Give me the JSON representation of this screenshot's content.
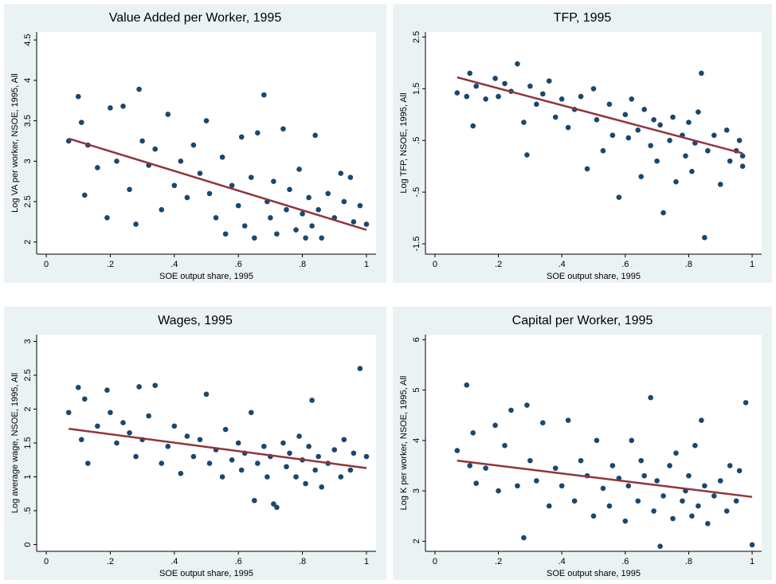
{
  "chart_data": [
    {
      "type": "scatter",
      "title": "Value Added per Worker, 1995",
      "x_label": "SOE output share, 1995",
      "y_label": "Log VA per worker, NSOE, 1995, All",
      "xlim": [
        -0.03,
        1.03
      ],
      "xticks": [
        0,
        {
          "value": 0.2,
          "label": ".2"
        },
        {
          "value": 0.4,
          "label": ".4"
        },
        {
          "value": 0.6,
          "label": ".6"
        },
        {
          "value": 0.8,
          "label": ".8"
        },
        1
      ],
      "ylim": [
        1.85,
        4.6
      ],
      "yticks": [
        2,
        2.5,
        3,
        3.5,
        4,
        4.5
      ],
      "series": [
        {
          "type": "scatter",
          "color": "#1a476f",
          "x": [
            0.07,
            0.1,
            0.11,
            0.12,
            0.13,
            0.16,
            0.19,
            0.2,
            0.22,
            0.24,
            0.26,
            0.28,
            0.29,
            0.3,
            0.32,
            0.34,
            0.36,
            0.38,
            0.4,
            0.42,
            0.44,
            0.46,
            0.48,
            0.5,
            0.51,
            0.53,
            0.55,
            0.56,
            0.58,
            0.6,
            0.61,
            0.62,
            0.64,
            0.65,
            0.66,
            0.68,
            0.69,
            0.7,
            0.71,
            0.72,
            0.74,
            0.75,
            0.76,
            0.78,
            0.79,
            0.8,
            0.81,
            0.82,
            0.83,
            0.84,
            0.85,
            0.86,
            0.88,
            0.9,
            0.92,
            0.93,
            0.95,
            0.96,
            0.98,
            1.0
          ],
          "values": [
            3.25,
            3.8,
            3.48,
            2.58,
            3.2,
            2.92,
            2.3,
            3.66,
            3.0,
            3.68,
            2.65,
            2.22,
            3.89,
            3.25,
            2.95,
            3.15,
            2.4,
            3.58,
            2.7,
            3.0,
            2.55,
            3.2,
            2.85,
            3.5,
            2.6,
            2.3,
            3.05,
            2.1,
            2.7,
            2.45,
            3.3,
            2.2,
            2.8,
            2.05,
            3.35,
            3.82,
            2.5,
            2.3,
            2.75,
            2.1,
            3.4,
            2.4,
            2.65,
            2.15,
            2.9,
            2.35,
            2.05,
            2.55,
            2.2,
            3.32,
            2.4,
            2.05,
            2.6,
            2.3,
            2.85,
            2.5,
            2.8,
            2.25,
            2.45,
            2.22
          ]
        },
        {
          "type": "line",
          "color": "#90353b",
          "x": [
            0.07,
            1.0
          ],
          "values": [
            3.28,
            2.15
          ]
        }
      ]
    },
    {
      "type": "scatter",
      "title": "TFP, 1995",
      "x_label": "SOE output share, 1995",
      "y_label": "Log TFP, NSOE, 1995, All",
      "xlim": [
        -0.03,
        1.03
      ],
      "xticks": [
        0,
        {
          "value": 0.2,
          "label": ".2"
        },
        {
          "value": 0.4,
          "label": ".4"
        },
        {
          "value": 0.6,
          "label": ".6"
        },
        {
          "value": 0.8,
          "label": ".8"
        },
        1
      ],
      "ylim": [
        -1.7,
        2.6
      ],
      "yticks": [
        -1.5,
        {
          "value": -0.5,
          "label": "-.5"
        },
        {
          "value": 0.5,
          "label": ".5"
        },
        1.5,
        2.5
      ],
      "series": [
        {
          "type": "scatter",
          "color": "#1a476f",
          "x": [
            0.07,
            0.1,
            0.11,
            0.12,
            0.13,
            0.16,
            0.19,
            0.2,
            0.22,
            0.24,
            0.26,
            0.28,
            0.29,
            0.3,
            0.32,
            0.34,
            0.36,
            0.38,
            0.4,
            0.42,
            0.44,
            0.46,
            0.48,
            0.5,
            0.51,
            0.53,
            0.55,
            0.56,
            0.58,
            0.6,
            0.61,
            0.62,
            0.64,
            0.65,
            0.66,
            0.68,
            0.69,
            0.7,
            0.71,
            0.72,
            0.74,
            0.75,
            0.76,
            0.78,
            0.79,
            0.8,
            0.81,
            0.82,
            0.83,
            0.84,
            0.85,
            0.86,
            0.88,
            0.9,
            0.92,
            0.93,
            0.95,
            0.96,
            0.97,
            0.97
          ],
          "values": [
            1.42,
            1.35,
            1.8,
            0.78,
            1.55,
            1.3,
            1.7,
            1.35,
            1.6,
            1.45,
            1.98,
            0.85,
            0.22,
            1.55,
            1.2,
            1.4,
            1.65,
            0.95,
            1.3,
            0.75,
            1.1,
            1.35,
            -0.05,
            1.5,
            0.9,
            0.3,
            1.2,
            0.6,
            -0.6,
            1.0,
            0.55,
            1.3,
            0.7,
            -0.2,
            1.1,
            0.4,
            0.9,
            0.1,
            0.8,
            -0.9,
            0.5,
            0.95,
            -0.3,
            0.6,
            0.2,
            0.85,
            -0.1,
            0.45,
            1.05,
            1.8,
            -1.38,
            0.3,
            0.6,
            -0.35,
            0.7,
            0.1,
            0.3,
            0.5,
            0.0,
            0.2
          ]
        },
        {
          "type": "line",
          "color": "#90353b",
          "x": [
            0.07,
            0.97
          ],
          "values": [
            1.72,
            0.25
          ]
        }
      ]
    },
    {
      "type": "scatter",
      "title": "Wages, 1995",
      "x_label": "SOE output share, 1995",
      "y_label": "Log average wage, NSOE, 1995, All",
      "xlim": [
        -0.03,
        1.03
      ],
      "xticks": [
        0,
        {
          "value": 0.2,
          "label": ".2"
        },
        {
          "value": 0.4,
          "label": ".4"
        },
        {
          "value": 0.6,
          "label": ".6"
        },
        {
          "value": 0.8,
          "label": ".8"
        },
        1
      ],
      "ylim": [
        -0.1,
        3.1
      ],
      "yticks": [
        0,
        {
          "value": 0.5,
          "label": ".5"
        },
        1,
        1.5,
        2,
        2.5,
        3
      ],
      "series": [
        {
          "type": "scatter",
          "color": "#1a476f",
          "x": [
            0.07,
            0.1,
            0.11,
            0.12,
            0.13,
            0.16,
            0.19,
            0.2,
            0.22,
            0.24,
            0.26,
            0.28,
            0.29,
            0.3,
            0.32,
            0.34,
            0.36,
            0.38,
            0.4,
            0.42,
            0.44,
            0.46,
            0.48,
            0.5,
            0.51,
            0.53,
            0.55,
            0.56,
            0.58,
            0.6,
            0.61,
            0.62,
            0.64,
            0.65,
            0.66,
            0.68,
            0.69,
            0.7,
            0.71,
            0.72,
            0.74,
            0.75,
            0.76,
            0.78,
            0.79,
            0.8,
            0.81,
            0.82,
            0.83,
            0.84,
            0.85,
            0.86,
            0.88,
            0.9,
            0.92,
            0.93,
            0.95,
            0.96,
            0.98,
            1.0
          ],
          "values": [
            1.95,
            2.32,
            1.55,
            2.15,
            1.2,
            1.75,
            2.28,
            1.95,
            1.5,
            1.8,
            1.65,
            1.3,
            2.33,
            1.55,
            1.9,
            2.35,
            1.2,
            1.45,
            1.75,
            1.05,
            1.6,
            1.3,
            1.55,
            2.22,
            1.2,
            1.4,
            1.0,
            1.7,
            1.25,
            1.5,
            1.1,
            1.35,
            1.95,
            0.65,
            1.2,
            1.45,
            1.0,
            1.3,
            0.6,
            0.55,
            1.5,
            1.15,
            1.35,
            1.0,
            1.6,
            1.25,
            0.9,
            1.45,
            2.13,
            1.1,
            1.3,
            0.85,
            1.2,
            1.4,
            1.0,
            1.55,
            1.1,
            1.35,
            2.6,
            1.3
          ]
        },
        {
          "type": "line",
          "color": "#90353b",
          "x": [
            0.07,
            1.0
          ],
          "values": [
            1.71,
            1.13
          ]
        }
      ]
    },
    {
      "type": "scatter",
      "title": "Capital per Worker, 1995",
      "x_label": "SOE output share, 1995",
      "y_label": "Log K per worker, NSOE, 1995, All",
      "xlim": [
        -0.03,
        1.03
      ],
      "xticks": [
        0,
        {
          "value": 0.2,
          "label": ".2"
        },
        {
          "value": 0.4,
          "label": ".4"
        },
        {
          "value": 0.6,
          "label": ".6"
        },
        {
          "value": 0.8,
          "label": ".8"
        },
        1
      ],
      "ylim": [
        1.8,
        6.1
      ],
      "yticks": [
        2,
        3,
        4,
        5,
        6
      ],
      "series": [
        {
          "type": "scatter",
          "color": "#1a476f",
          "x": [
            0.07,
            0.1,
            0.11,
            0.12,
            0.13,
            0.16,
            0.19,
            0.2,
            0.22,
            0.24,
            0.26,
            0.28,
            0.29,
            0.3,
            0.32,
            0.34,
            0.36,
            0.38,
            0.4,
            0.42,
            0.44,
            0.46,
            0.48,
            0.5,
            0.51,
            0.53,
            0.55,
            0.56,
            0.58,
            0.6,
            0.61,
            0.62,
            0.64,
            0.65,
            0.66,
            0.68,
            0.69,
            0.7,
            0.71,
            0.72,
            0.74,
            0.75,
            0.76,
            0.78,
            0.79,
            0.8,
            0.81,
            0.82,
            0.83,
            0.84,
            0.85,
            0.86,
            0.88,
            0.9,
            0.92,
            0.93,
            0.95,
            0.96,
            0.98,
            1.0
          ],
          "values": [
            3.8,
            5.1,
            3.5,
            4.15,
            3.15,
            3.45,
            4.3,
            3.0,
            3.9,
            4.6,
            3.1,
            2.07,
            4.7,
            3.6,
            3.2,
            4.35,
            2.7,
            3.45,
            3.1,
            4.4,
            2.8,
            3.6,
            3.3,
            2.5,
            4.0,
            3.05,
            2.7,
            3.5,
            3.25,
            2.4,
            3.1,
            4.0,
            2.8,
            3.6,
            3.3,
            4.85,
            2.6,
            3.2,
            1.9,
            2.9,
            3.5,
            2.45,
            3.75,
            2.8,
            3.0,
            3.3,
            2.5,
            3.9,
            2.7,
            4.4,
            3.1,
            2.35,
            2.9,
            3.2,
            2.6,
            3.5,
            2.8,
            3.4,
            4.75,
            1.93
          ]
        },
        {
          "type": "line",
          "color": "#90353b",
          "x": [
            0.07,
            1.0
          ],
          "values": [
            3.6,
            2.88
          ]
        }
      ]
    }
  ]
}
